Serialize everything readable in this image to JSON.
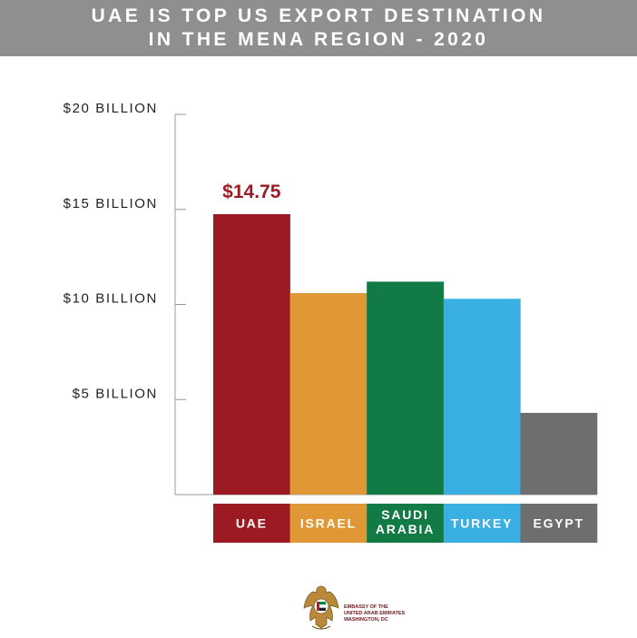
{
  "header": {
    "title_line1": "UAE IS TOP US EXPORT DESTINATION",
    "title_line2": "IN THE MENA REGION - 2020"
  },
  "chart_data": {
    "type": "bar",
    "categories": [
      "UAE",
      "ISRAEL",
      "SAUDI ARABIA",
      "TURKEY",
      "EGYPT"
    ],
    "category_label_lines": [
      [
        "UAE"
      ],
      [
        "ISRAEL"
      ],
      [
        "SAUDI",
        "ARABIA"
      ],
      [
        "TURKEY"
      ],
      [
        "EGYPT"
      ]
    ],
    "values": [
      14.75,
      10.6,
      11.2,
      10.3,
      4.3
    ],
    "colors": [
      "#9c1b22",
      "#e09735",
      "#127a44",
      "#3ab0e2",
      "#6e6e6e"
    ],
    "ylim": [
      0,
      20
    ],
    "yticks": [
      {
        "value": 5,
        "label": "$5 BILLION"
      },
      {
        "value": 10,
        "label": "$10 BILLION"
      },
      {
        "value": 15,
        "label": "$15 BILLION"
      },
      {
        "value": 20,
        "label": "$20 BILLION"
      }
    ],
    "annotations": [
      {
        "category": "UAE",
        "text": "$14.75",
        "color": "#9c1b22"
      }
    ],
    "title": "UAE IS TOP US EXPORT DESTINATION IN THE MENA REGION - 2020",
    "xlabel": "",
    "ylabel": "",
    "grid": false,
    "legend": "none"
  },
  "footer": {
    "logo_icon": "uae-emblem-icon",
    "logo_line1": "EMBASSY OF THE",
    "logo_line2": "UNITED ARAB EMIRATES",
    "logo_line3": "WASHINGTON, DC"
  }
}
